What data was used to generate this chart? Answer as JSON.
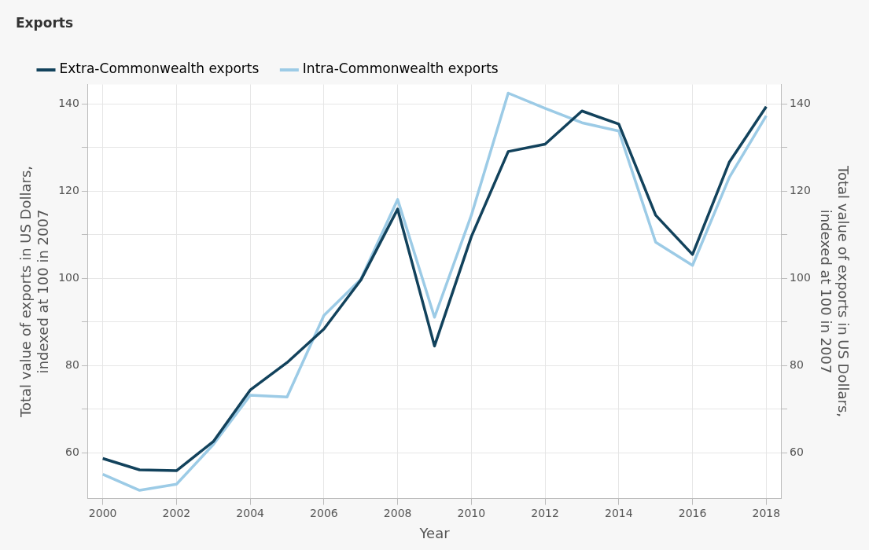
{
  "chart_data": {
    "type": "line",
    "title": "Exports",
    "xlabel": "Year",
    "ylabel": "Total value of exports in US Dollars,\nindexed at 100 in 2007",
    "y2label": "Total value of exports in US Dollars,\nindexed at 100 in 2007",
    "x": [
      2000,
      2001,
      2002,
      2003,
      2004,
      2005,
      2006,
      2007,
      2008,
      2009,
      2010,
      2011,
      2012,
      2013,
      2014,
      2015,
      2016,
      2017,
      2018
    ],
    "series": [
      {
        "name": "Extra-Commonwealth exports",
        "color": "#12425c",
        "values": [
          58.7,
          56.1,
          55.9,
          62.6,
          74.4,
          80.7,
          88.4,
          99.6,
          115.9,
          84.5,
          109.6,
          129.1,
          130.8,
          138.4,
          135.4,
          114.5,
          105.5,
          126.7,
          139.4
        ]
      },
      {
        "name": "Intra-Commonwealth exports",
        "color": "#9ccbe6",
        "values": [
          55.1,
          51.4,
          52.8,
          61.9,
          73.2,
          72.8,
          91.5,
          99.8,
          118.1,
          91.1,
          114.5,
          142.5,
          139.0,
          135.7,
          133.8,
          108.3,
          103.0,
          123.2,
          137.3
        ]
      }
    ],
    "xlim": [
      1999.6,
      2018.4
    ],
    "xticks": [
      2000,
      2002,
      2004,
      2006,
      2008,
      2010,
      2012,
      2014,
      2016,
      2018
    ],
    "ylim": [
      49.5,
      144.5
    ],
    "yticks": [
      60,
      {
        "value": 70,
        "label": null
      },
      80,
      {
        "value": 90,
        "label": null
      },
      100,
      {
        "value": 110,
        "label": null
      },
      120,
      {
        "value": 130,
        "label": null
      },
      140
    ],
    "y2lim": [
      49.5,
      144.5
    ],
    "y2ticks": [
      60,
      {
        "value": 70,
        "label": null
      },
      80,
      {
        "value": 90,
        "label": null
      },
      100,
      {
        "value": 110,
        "label": null
      },
      120,
      {
        "value": 130,
        "label": null
      },
      140
    ],
    "grid": true,
    "legend": "top left",
    "marker": "none",
    "line_style": "solid"
  }
}
